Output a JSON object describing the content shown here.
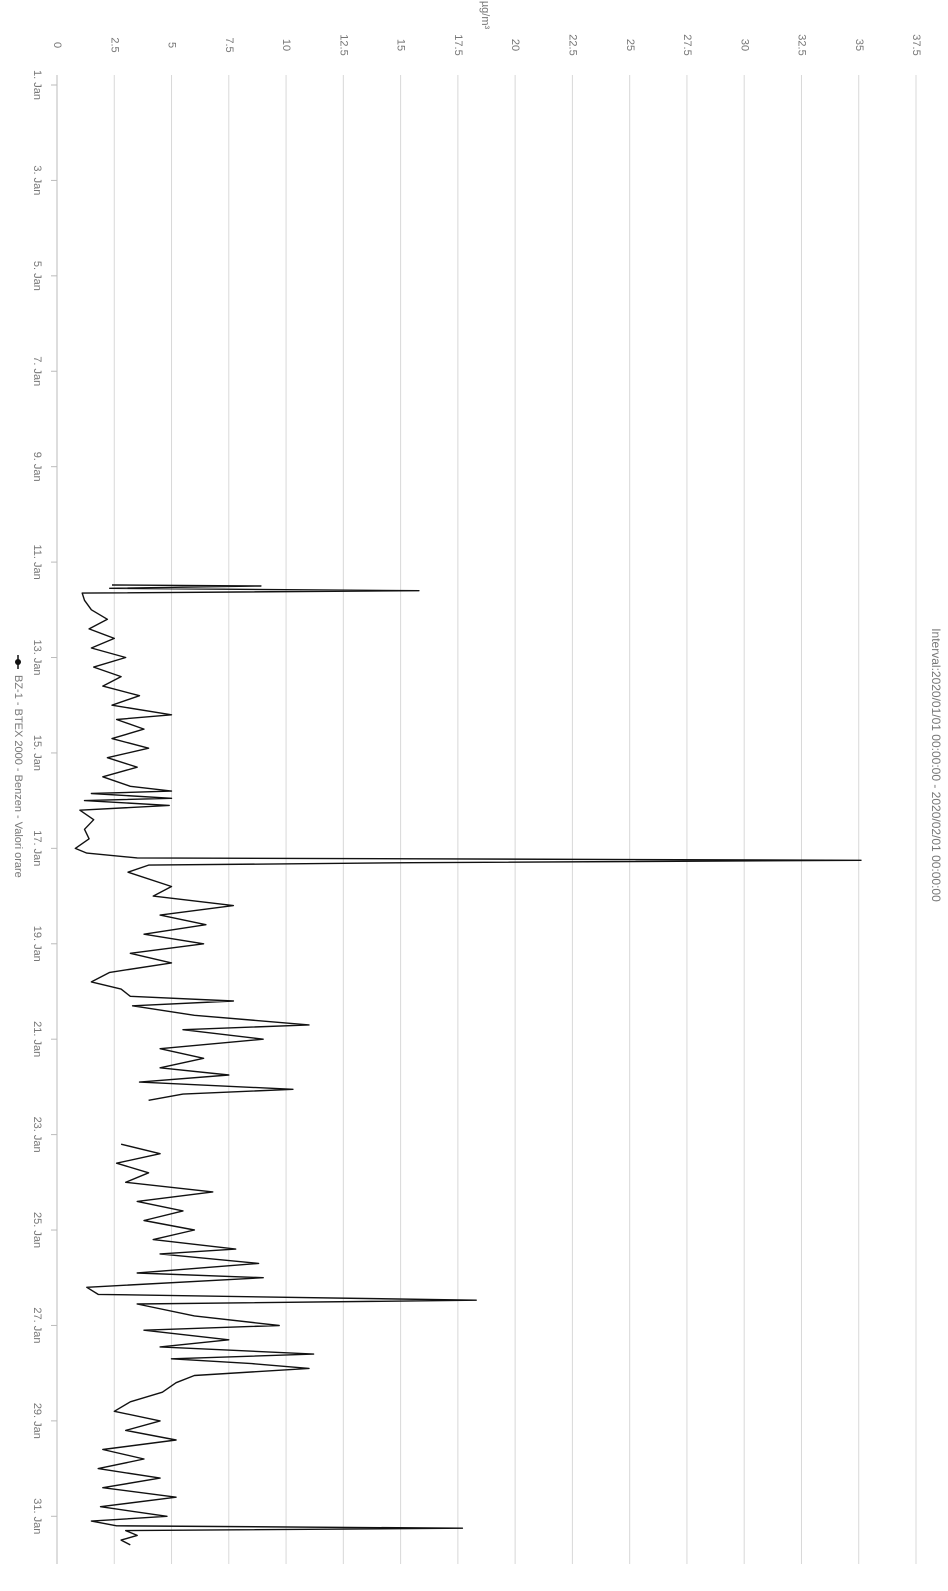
{
  "chart_data": {
    "type": "line",
    "title": "Interval:2020/01/01 00:00:00 - 2020/02/01 00:00:00",
    "y_axis_label": "µg/m³",
    "x": [
      11.48,
      11.5,
      11.55,
      11.6,
      11.65,
      11.8,
      12.0,
      12.2,
      12.4,
      12.6,
      12.8,
      13.0,
      13.2,
      13.4,
      13.6,
      13.8,
      14.0,
      14.2,
      14.3,
      14.5,
      14.7,
      14.9,
      15.1,
      15.3,
      15.5,
      15.7,
      15.8,
      15.85,
      15.95,
      16.0,
      16.1,
      16.2,
      16.4,
      16.6,
      16.8,
      17.0,
      17.1,
      17.2,
      17.25,
      17.3,
      17.35,
      17.5,
      17.8,
      18.0,
      18.2,
      18.4,
      18.6,
      18.8,
      19.0,
      19.2,
      19.4,
      19.6,
      19.8,
      19.95,
      20.1,
      20.2,
      20.3,
      20.5,
      20.7,
      20.8,
      21.0,
      21.2,
      21.4,
      21.6,
      21.75,
      21.9,
      22.05,
      22.15,
      22.28,
      22.6,
      23.2,
      23.4,
      23.6,
      23.8,
      24.0,
      24.2,
      24.4,
      24.6,
      24.8,
      25.0,
      25.2,
      25.4,
      25.5,
      25.7,
      25.9,
      26.0,
      26.2,
      26.35,
      26.47,
      26.55,
      26.8,
      27.0,
      27.1,
      27.3,
      27.45,
      27.6,
      27.7,
      27.8,
      27.9,
      28.05,
      28.2,
      28.4,
      28.6,
      28.8,
      29.0,
      29.2,
      29.4,
      29.6,
      29.8,
      30.0,
      30.2,
      30.4,
      30.6,
      30.8,
      31.0,
      31.1,
      31.2,
      31.25,
      31.3,
      31.4,
      31.5,
      31.6
    ],
    "series": [
      {
        "name": "BZ-1 - BTEX 2000 - Benzen - Valori orare",
        "color": "#111111",
        "values": [
          2.4,
          8.9,
          2.3,
          15.8,
          1.1,
          1.2,
          1.5,
          2.2,
          1.4,
          2.5,
          1.5,
          3.0,
          1.6,
          2.8,
          2.0,
          3.6,
          2.4,
          5.0,
          2.6,
          3.8,
          2.4,
          4.0,
          2.2,
          3.5,
          2.0,
          3.2,
          5.0,
          1.5,
          5.0,
          1.2,
          4.9,
          1.0,
          1.6,
          1.2,
          1.4,
          0.8,
          1.3,
          3.5,
          35.1,
          15.5,
          4.0,
          3.1,
          5.0,
          4.2,
          7.7,
          4.5,
          6.5,
          3.8,
          6.4,
          3.2,
          5.0,
          2.3,
          1.5,
          2.8,
          3.2,
          7.7,
          3.3,
          6.0,
          11.0,
          5.5,
          9.0,
          4.5,
          6.4,
          4.5,
          7.5,
          3.6,
          10.3,
          5.5,
          4.0,
          null,
          2.8,
          4.5,
          2.6,
          4.0,
          3.0,
          6.8,
          3.5,
          5.5,
          3.8,
          6.0,
          4.2,
          7.8,
          4.5,
          8.8,
          3.5,
          9.0,
          1.3,
          1.8,
          18.3,
          3.5,
          6.0,
          9.7,
          3.8,
          7.5,
          4.5,
          11.2,
          5.0,
          8.5,
          11.0,
          6.0,
          5.2,
          4.6,
          3.2,
          2.5,
          4.5,
          3.0,
          5.2,
          2.0,
          3.8,
          1.8,
          4.5,
          2.0,
          5.2,
          1.9,
          4.8,
          1.5,
          2.6,
          17.7,
          3.0,
          3.5,
          2.8,
          3.2
        ]
      }
    ],
    "xlim": [
      1,
      32
    ],
    "xticks": [
      {
        "value": 1,
        "label": "1. Jan"
      },
      {
        "value": 3,
        "label": "3. Jan"
      },
      {
        "value": 5,
        "label": "5. Jan"
      },
      {
        "value": 7,
        "label": "7. Jan"
      },
      {
        "value": 9,
        "label": "9. Jan"
      },
      {
        "value": 11,
        "label": "11. Jan"
      },
      {
        "value": 13,
        "label": "13. Jan"
      },
      {
        "value": 15,
        "label": "15. Jan"
      },
      {
        "value": 17,
        "label": "17. Jan"
      },
      {
        "value": 19,
        "label": "19. Jan"
      },
      {
        "value": 21,
        "label": "21. Jan"
      },
      {
        "value": 23,
        "label": "23. Jan"
      },
      {
        "value": 25,
        "label": "25. Jan"
      },
      {
        "value": 27,
        "label": "27. Jan"
      },
      {
        "value": 29,
        "label": "29. Jan"
      },
      {
        "value": 31,
        "label": "31. Jan"
      }
    ],
    "ylim": [
      0,
      37.5
    ],
    "yticks": [
      0,
      2.5,
      5,
      7.5,
      10,
      12.5,
      15,
      17.5,
      20,
      22.5,
      25,
      27.5,
      30,
      32.5,
      35,
      37.5
    ],
    "grid": true,
    "rotation": 90
  }
}
